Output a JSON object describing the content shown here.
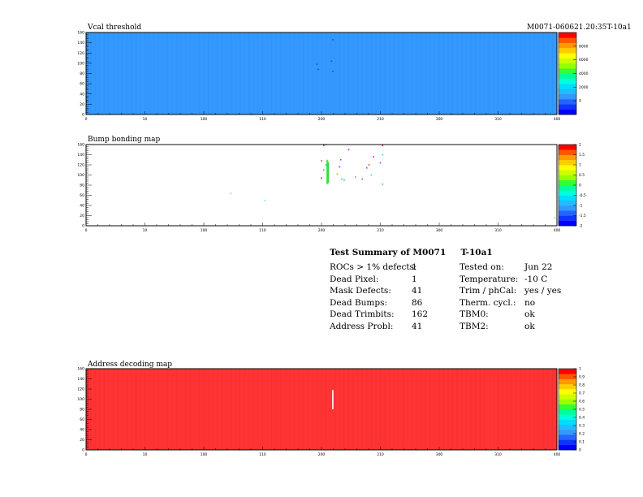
{
  "page_tag": "M0071-060621.20:35T-10a1",
  "chart_data": [
    {
      "type": "heatmap",
      "title": "Vcal threshold",
      "x_ticks": [
        "0",
        "10",
        "100",
        "110",
        "200",
        "210",
        "300",
        "310",
        "400",
        "410"
      ],
      "y_ticks": [
        "0",
        "20",
        "40",
        "60",
        "80",
        "100",
        "120",
        "140",
        "160"
      ],
      "ylim": [
        0,
        160
      ],
      "base_value": 1000,
      "base_color": "#3399ff",
      "colorbar_ticks": [
        "0",
        "2000",
        "4000",
        "6000",
        "8000"
      ],
      "colorbar_range": [
        -2000,
        10000
      ],
      "points": [
        {
          "x": 204,
          "y": 98,
          "color": "#0055dd"
        },
        {
          "x": 205,
          "y": 88,
          "color": "#0055dd"
        },
        {
          "x": 217,
          "y": 104,
          "color": "#0055dd"
        },
        {
          "x": 218,
          "y": 84,
          "color": "#0055dd"
        },
        {
          "x": 218,
          "y": 146,
          "color": "#0055dd"
        }
      ]
    },
    {
      "type": "heatmap",
      "title": "Bump bonding map",
      "x_ticks": [
        "0",
        "10",
        "100",
        "110",
        "200",
        "210",
        "300",
        "310",
        "400",
        "410"
      ],
      "y_ticks": [
        "0",
        "20",
        "40",
        "60",
        "80",
        "100",
        "120",
        "140",
        "160"
      ],
      "ylim": [
        0,
        160
      ],
      "base_value": null,
      "base_color": "#ffffff",
      "colorbar_ticks": [
        "-2",
        "-1.5",
        "-1",
        "-0.5",
        "0",
        "0.5",
        "1",
        "1.5",
        "2"
      ],
      "colorbar_range": [
        -2,
        2
      ],
      "points": [
        {
          "x": 208,
          "y": 94,
          "color": "#cc00ff"
        },
        {
          "x": 210,
          "y": 158,
          "color": "#ff0066"
        },
        {
          "x": 212,
          "y": 160,
          "color": "#3366ff"
        },
        {
          "x": 208,
          "y": 128,
          "color": "#ff3300"
        },
        {
          "x": 210,
          "y": 110,
          "color": "#33cc33"
        },
        {
          "x": 212,
          "y": 120,
          "color": "#00ccff"
        },
        {
          "x": 222,
          "y": 102,
          "color": "#ff9900"
        },
        {
          "x": 225,
          "y": 130,
          "color": "#3366ff"
        },
        {
          "x": 224,
          "y": 116,
          "color": "#cc00ff"
        },
        {
          "x": 226,
          "y": 92,
          "color": "#00ccff"
        },
        {
          "x": 228,
          "y": 90,
          "color": "#33cc33"
        },
        {
          "x": 232,
          "y": 150,
          "color": "#ff0066"
        },
        {
          "x": 238,
          "y": 96,
          "color": "#00ccff"
        },
        {
          "x": 244,
          "y": 92,
          "color": "#3366ff"
        },
        {
          "x": 248,
          "y": 114,
          "color": "#9933ff"
        },
        {
          "x": 250,
          "y": 120,
          "color": "#ff3300"
        },
        {
          "x": 252,
          "y": 100,
          "color": "#00ccff"
        },
        {
          "x": 254,
          "y": 136,
          "color": "#cc00ff"
        },
        {
          "x": 260,
          "y": 124,
          "color": "#3366ff"
        },
        {
          "x": 262,
          "y": 140,
          "color": "#00ccff"
        },
        {
          "x": 262,
          "y": 158,
          "color": "#ff0066"
        },
        {
          "x": 262,
          "y": 82,
          "color": "#33cc33"
        },
        {
          "x": 128,
          "y": 64,
          "color": "#66ff66"
        },
        {
          "x": 158,
          "y": 50,
          "color": "#66ff66"
        },
        {
          "x": 414,
          "y": 16,
          "color": "#66ff66"
        }
      ],
      "columns": [
        {
          "x": 213,
          "y0": 82,
          "y1": 130,
          "color": "#33dd33"
        },
        {
          "x": 214,
          "y0": 84,
          "y1": 126,
          "color": "#33dd33"
        }
      ]
    },
    {
      "type": "heatmap",
      "title": "Address decoding map",
      "x_ticks": [
        "0",
        "10",
        "100",
        "110",
        "200",
        "210",
        "300",
        "310",
        "400",
        "410"
      ],
      "y_ticks": [
        "0",
        "20",
        "40",
        "60",
        "80",
        "100",
        "120",
        "140",
        "160"
      ],
      "ylim": [
        0,
        160
      ],
      "base_value": 1,
      "base_color": "#ff3333",
      "colorbar_ticks": [
        "0",
        "0.1",
        "0.2",
        "0.3",
        "0.4",
        "0.5",
        "0.6",
        "0.7",
        "0.8",
        "0.9",
        "1"
      ],
      "colorbar_range": [
        0,
        1
      ],
      "points": [],
      "columns": [
        {
          "x": 218,
          "y0": 80,
          "y1": 118,
          "color": "#ffffff"
        }
      ]
    }
  ],
  "summary": {
    "title": "Test Summary of M0071",
    "tag": "T-10a1",
    "left": [
      {
        "label": "ROCs > 1% defects:",
        "value": "1"
      },
      {
        "label": "Dead Pixel:",
        "value": "1"
      },
      {
        "label": "Mask Defects:",
        "value": "41"
      },
      {
        "label": "Dead Bumps:",
        "value": "86"
      },
      {
        "label": "Dead Trimbits:",
        "value": "162"
      },
      {
        "label": "Address Probl:",
        "value": "41"
      }
    ],
    "right": [
      {
        "label": "Tested on:",
        "value": "Jun 22"
      },
      {
        "label": "Temperature:",
        "value": "-10 C"
      },
      {
        "label": "Trim / phCal:",
        "value": "yes / yes"
      },
      {
        "label": "Therm. cycl.:",
        "value": "no"
      },
      {
        "label": "TBM0:",
        "value": "ok"
      },
      {
        "label": "TBM2:",
        "value": "ok"
      }
    ]
  }
}
